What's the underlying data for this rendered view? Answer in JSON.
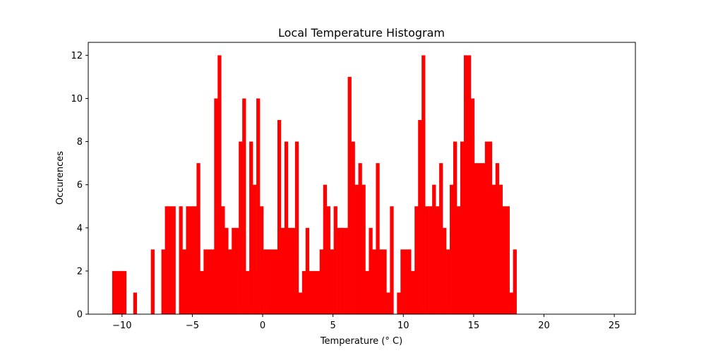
{
  "chart_data": {
    "type": "bar",
    "title": "Local Temperature Histogram",
    "xlabel": "Temperature (° C)",
    "ylabel": "Occurences",
    "xlim": [
      -12.4,
      26.5
    ],
    "ylim": [
      0,
      12.6
    ],
    "xticks": [
      -10,
      -5,
      0,
      5,
      10,
      15,
      20,
      25
    ],
    "yticks": [
      0,
      2,
      4,
      6,
      8,
      10,
      12
    ],
    "grid": false,
    "bar_color": "#ff0000",
    "bin_start": -10.7,
    "bin_width": 0.25,
    "counts": [
      2,
      2,
      2,
      2,
      0,
      0,
      1,
      0,
      0,
      0,
      0,
      3,
      0,
      0,
      3,
      5,
      5,
      5,
      0,
      5,
      3,
      5,
      5,
      5,
      7,
      2,
      3,
      3,
      3,
      10,
      12,
      5,
      4,
      3,
      4,
      4,
      8,
      10,
      2,
      8,
      6,
      10,
      5,
      3,
      3,
      3,
      3,
      9,
      4,
      8,
      4,
      4,
      8,
      1,
      2,
      4,
      2,
      2,
      2,
      3,
      6,
      5,
      3,
      5,
      4,
      4,
      4,
      11,
      8,
      6,
      7,
      6,
      2,
      4,
      3,
      7,
      3,
      3,
      1,
      5,
      0,
      1,
      3,
      3,
      3,
      2,
      5,
      9,
      12,
      5,
      5,
      6,
      5,
      7,
      4,
      3,
      6,
      8,
      5,
      8,
      12,
      12,
      10,
      7,
      7,
      7,
      8,
      8,
      6,
      7,
      6,
      5,
      5,
      1,
      3
    ]
  }
}
